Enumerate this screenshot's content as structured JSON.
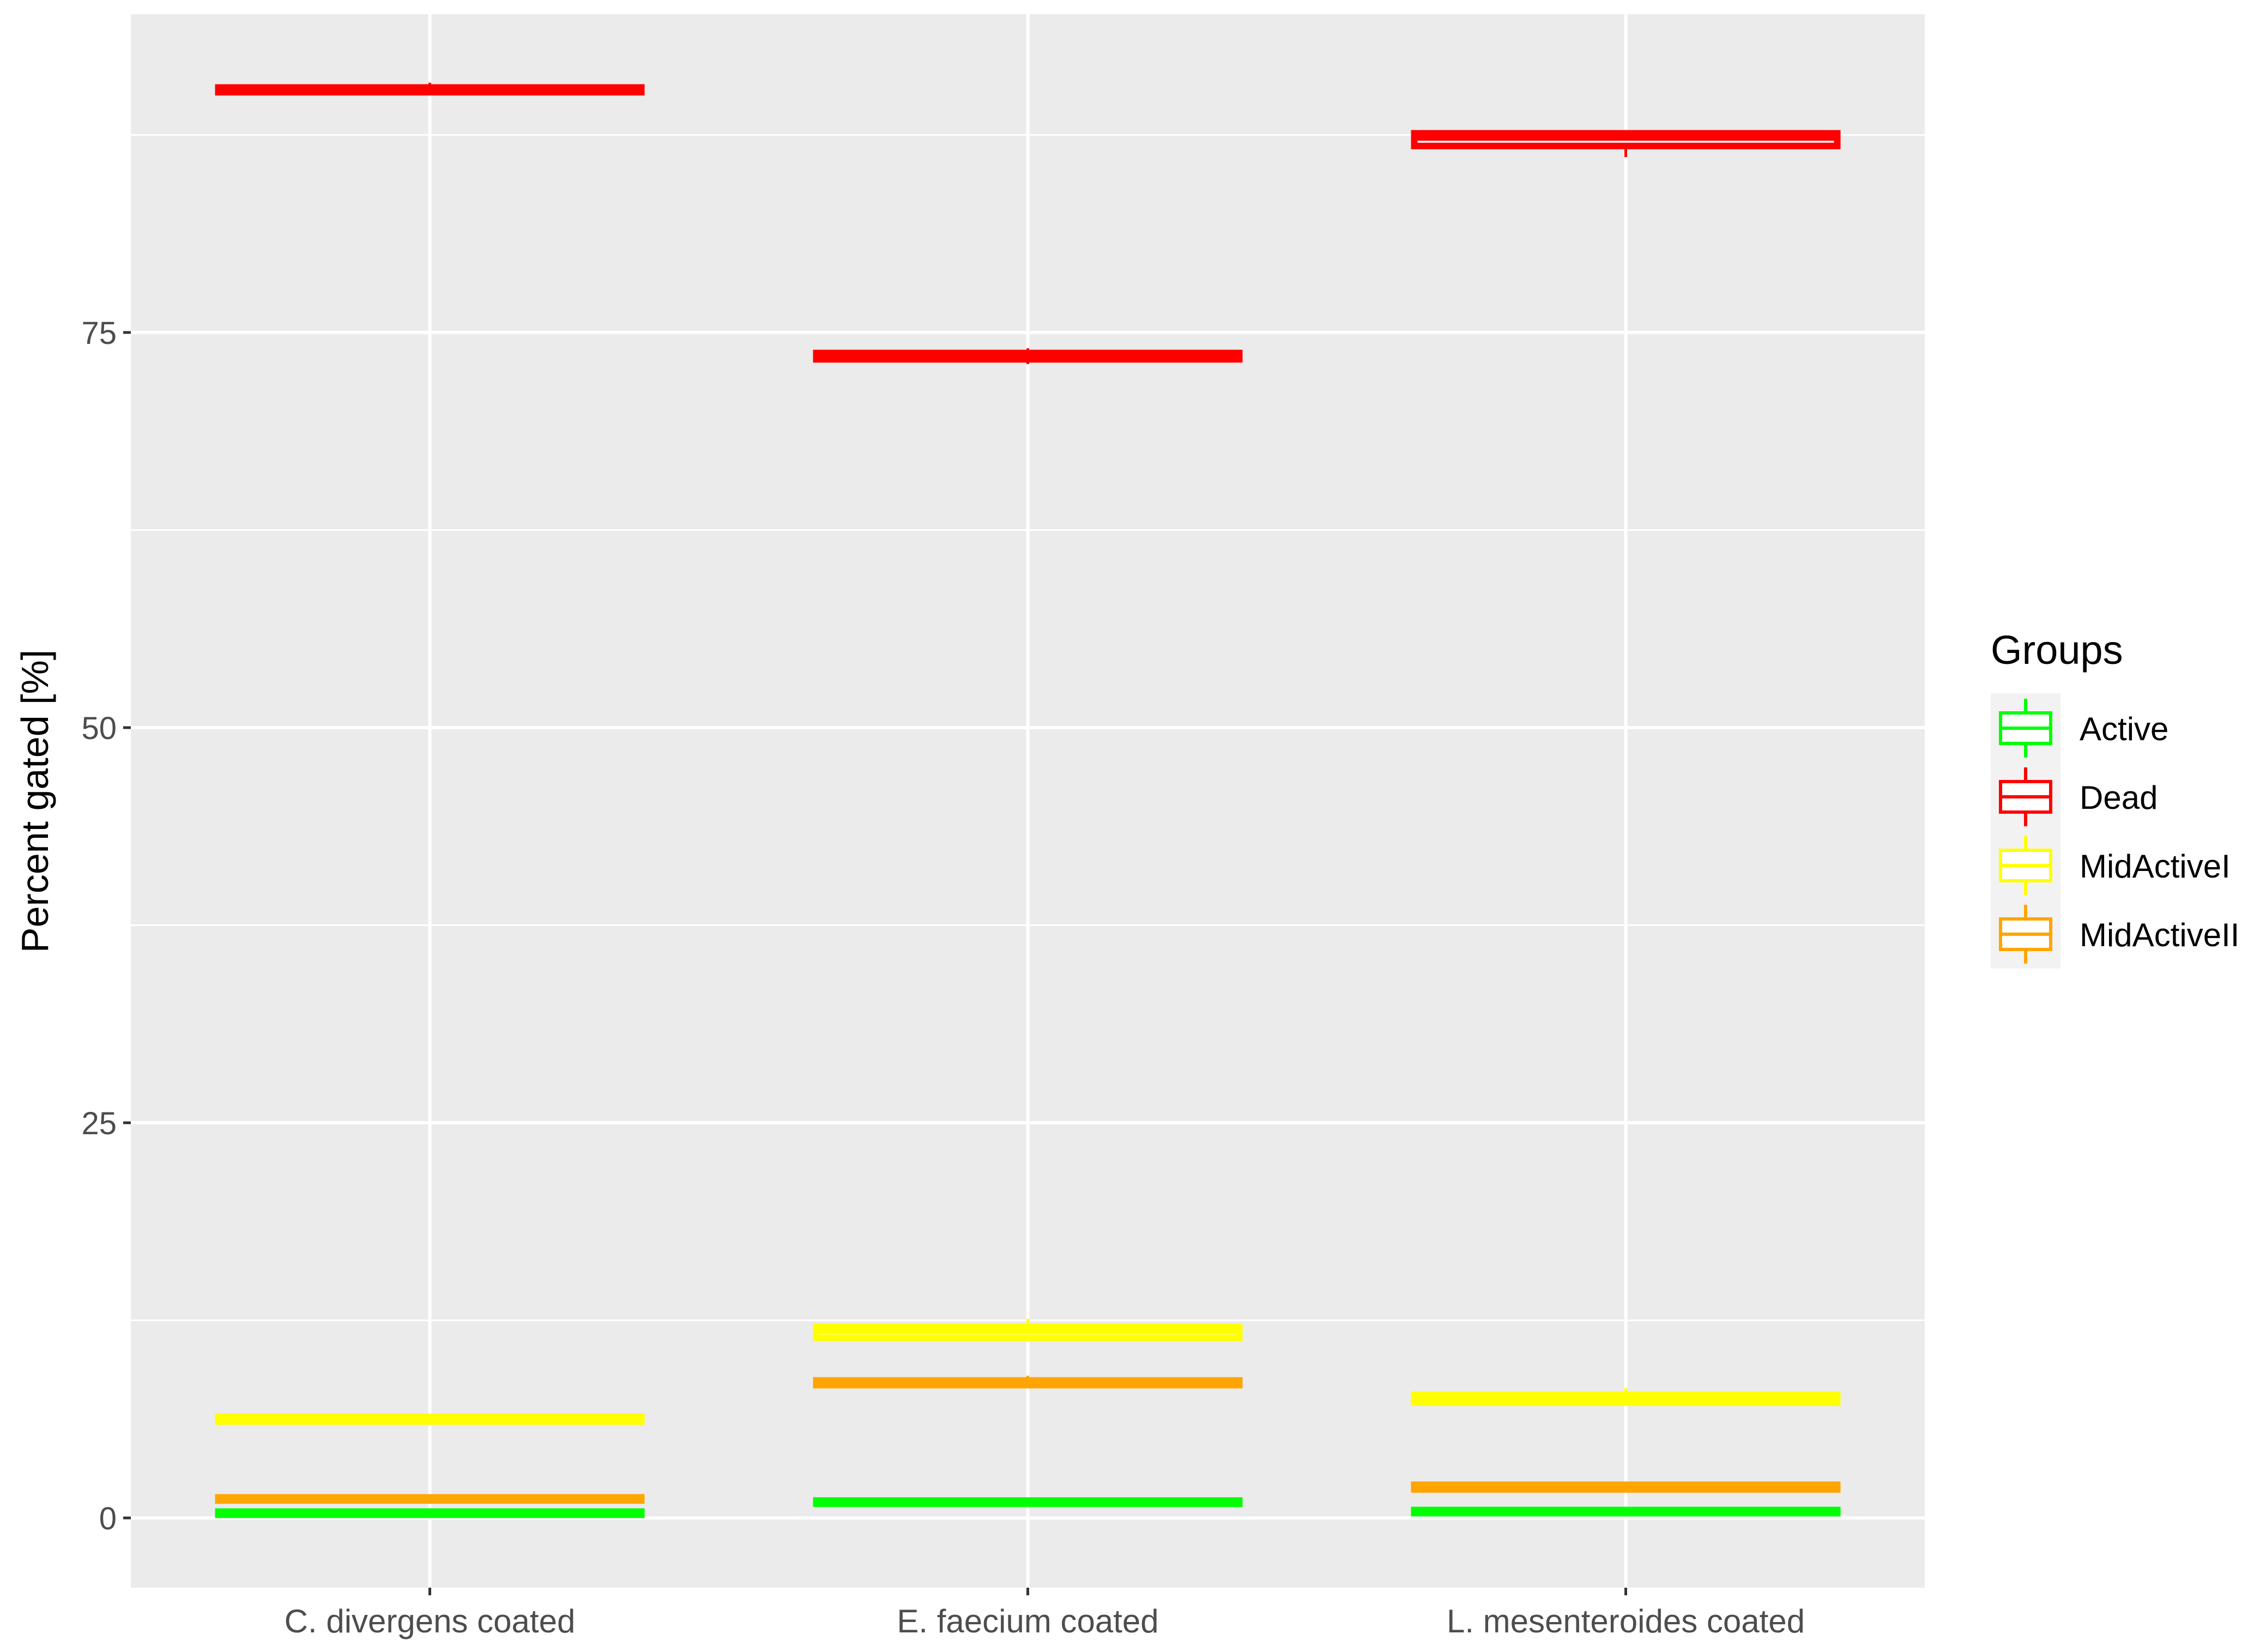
{
  "chart_data": {
    "type": "boxplot",
    "title": "",
    "xlabel": "",
    "ylabel": "Percent gated [%]",
    "categories": [
      "C. divergens coated",
      "E. faecium coated",
      "L. mesenteroides coated"
    ],
    "ylim": [
      -4.5,
      95.2
    ],
    "yticks": [
      0,
      25,
      50,
      75
    ],
    "grid": true,
    "legend": {
      "title": "Groups",
      "position": "right"
    },
    "series": [
      {
        "name": "Active",
        "color": "#00ff00",
        "boxes": [
          {
            "min": 0.2,
            "q1": 0.2,
            "median": 0.3,
            "q3": 0.4,
            "max": 0.4
          },
          {
            "min": 0.9,
            "q1": 0.9,
            "median": 1.0,
            "q3": 1.1,
            "max": 1.2
          },
          {
            "min": 0.3,
            "q1": 0.3,
            "median": 0.4,
            "q3": 0.5,
            "max": 0.5
          }
        ]
      },
      {
        "name": "Dead",
        "color": "#ff0000",
        "boxes": [
          {
            "min": 90.0,
            "q1": 90.2,
            "median": 90.3,
            "q3": 90.5,
            "max": 90.8
          },
          {
            "min": 73.0,
            "q1": 73.3,
            "median": 73.5,
            "q3": 73.7,
            "max": 74.0
          },
          {
            "min": 86.1,
            "q1": 86.8,
            "median": 87.3,
            "q3": 87.6,
            "max": 87.8
          }
        ]
      },
      {
        "name": "MidActiveI",
        "color": "#ffff00",
        "boxes": [
          {
            "min": 6.0,
            "q1": 6.1,
            "median": 6.3,
            "q3": 6.4,
            "max": 6.5
          },
          {
            "min": 11.2,
            "q1": 11.4,
            "median": 11.8,
            "q3": 12.1,
            "max": 12.6
          },
          {
            "min": 7.2,
            "q1": 7.3,
            "median": 7.5,
            "q3": 7.8,
            "max": 8.2
          }
        ]
      },
      {
        "name": "MidActiveII",
        "color": "#ffa500",
        "boxes": [
          {
            "min": 1.0,
            "q1": 1.1,
            "median": 1.2,
            "q3": 1.3,
            "max": 1.4
          },
          {
            "min": 8.3,
            "q1": 8.4,
            "median": 8.6,
            "q3": 8.7,
            "max": 9.0
          },
          {
            "min": 1.7,
            "q1": 1.8,
            "median": 2.0,
            "q3": 2.1,
            "max": 2.2
          }
        ]
      }
    ]
  }
}
